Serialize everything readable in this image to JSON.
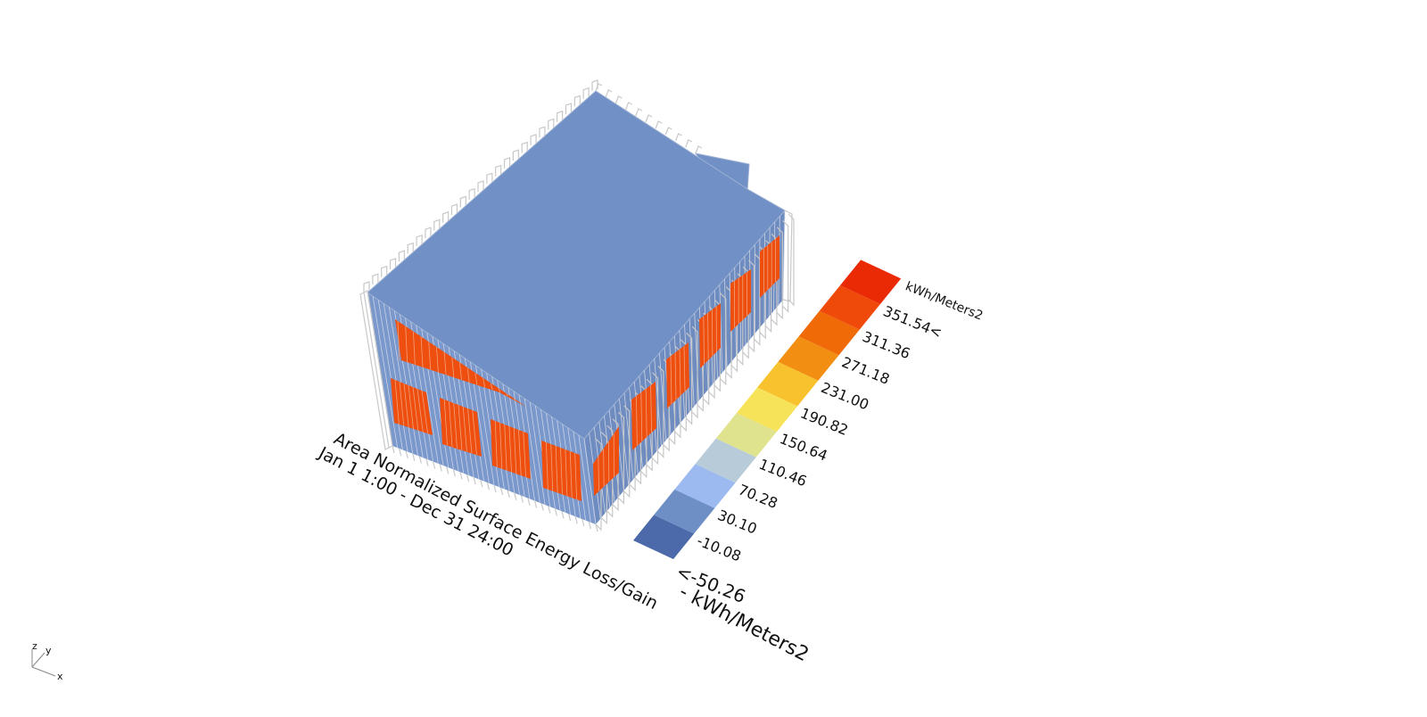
{
  "legend": {
    "unit": "kWh/Meters2",
    "labels": [
      "351.54<",
      "311.36",
      "271.18",
      "231.00",
      "190.82",
      "150.64",
      "110.46",
      "70.28",
      "30.10",
      "-10.08",
      "<-50.26"
    ],
    "colors": [
      "#ea2a05",
      "#ef4a0a",
      "#f06a08",
      "#f28f12",
      "#f7c22d",
      "#f7e35a",
      "#e0e38e",
      "#b7cbd9",
      "#9dbaf0",
      "#6d8fc6",
      "#4c6aaa"
    ]
  },
  "title": {
    "line1": "Area Normalized Surface Energy Loss/Gain",
    "unit_line": " - kWh/Meters2",
    "line2": "Jan 1 1:00 - Dec 31 24:00"
  },
  "axes_widget": {
    "z": "z",
    "y": "y",
    "x": "x"
  }
}
